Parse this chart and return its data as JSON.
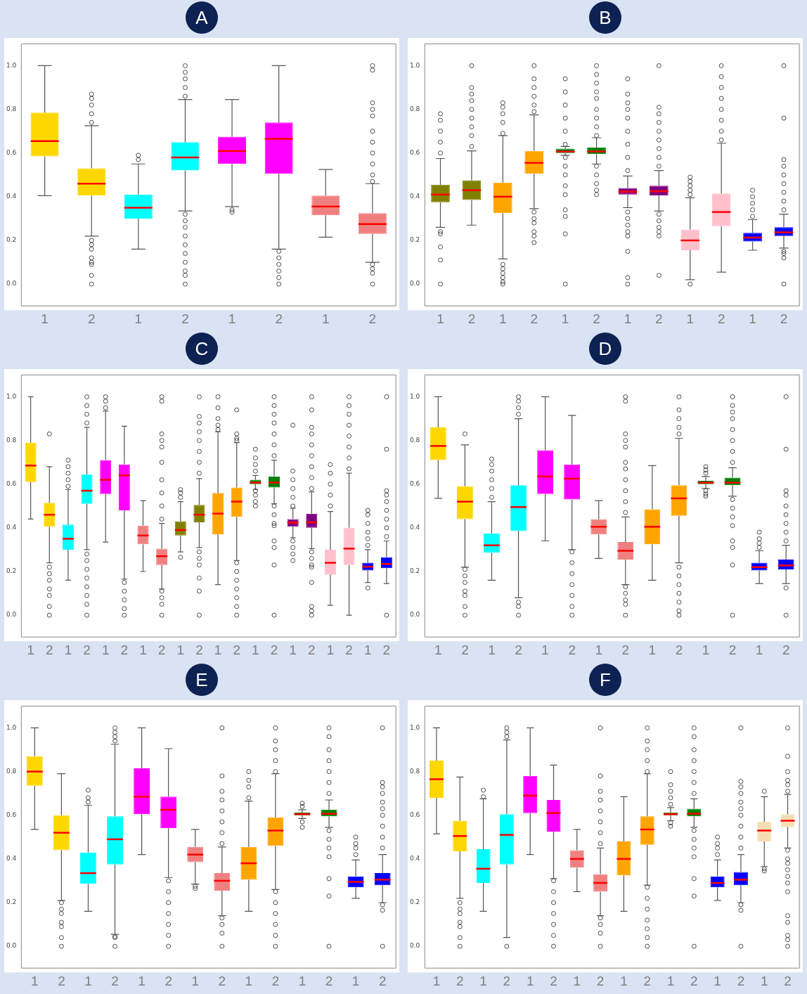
{
  "chart_data": [
    {
      "type": "box",
      "title": "A",
      "categories": [
        "1",
        "2",
        "1",
        "2",
        "1",
        "2",
        "1",
        "2"
      ],
      "colors": [
        "#ffd700",
        "#ffd700",
        "#00ffff",
        "#00ffff",
        "#ff00ff",
        "#ff00ff",
        "#f08080",
        "#f08080"
      ],
      "ylim": [
        -0.1,
        1.1
      ],
      "yticks": [
        {
          "value": 0,
          "label": "0.0"
        },
        {
          "value": 0.2,
          "label": "0.2"
        },
        {
          "value": 0.4,
          "label": "0.4"
        },
        {
          "value": 0.6,
          "label": "0.6"
        },
        {
          "value": 0.8,
          "label": "0.8"
        },
        {
          "value": 1,
          "label": "1.0"
        }
      ],
      "boxes": [
        {
          "low": 0.405,
          "q1": 0.585,
          "median": 0.655,
          "q3": 0.785,
          "high": 1.0
        },
        {
          "low": 0.22,
          "q1": 0.405,
          "median": 0.46,
          "q3": 0.53,
          "high": 0.725,
          "outliers": [
            0.74,
            0.78,
            0.82,
            0.85,
            0.87,
            0.2,
            0.18,
            0.16,
            0.12,
            0.1,
            0.09,
            0.04,
            0.0
          ]
        },
        {
          "low": 0.16,
          "q1": 0.3,
          "median": 0.35,
          "q3": 0.41,
          "high": 0.55,
          "outliers": [
            0.57,
            0.59
          ]
        },
        {
          "low": 0.335,
          "q1": 0.52,
          "median": 0.58,
          "q3": 0.65,
          "high": 0.845,
          "outliers": [
            0.86,
            0.9,
            0.94,
            0.97,
            1.0,
            0.32,
            0.29,
            0.26,
            0.22,
            0.18,
            0.14,
            0.1,
            0.06,
            0.04,
            0.0
          ]
        },
        {
          "low": 0.355,
          "q1": 0.55,
          "median": 0.61,
          "q3": 0.675,
          "high": 0.845,
          "outliers": [
            0.34,
            0.33
          ]
        },
        {
          "low": 0.16,
          "q1": 0.505,
          "median": 0.665,
          "q3": 0.74,
          "high": 1.0,
          "outliers": [
            0.15,
            0.12,
            0.09,
            0.06,
            0.03,
            0.0
          ]
        },
        {
          "low": 0.215,
          "q1": 0.315,
          "median": 0.355,
          "q3": 0.405,
          "high": 0.525
        },
        {
          "low": 0.1,
          "q1": 0.23,
          "median": 0.275,
          "q3": 0.325,
          "high": 0.46,
          "outliers": [
            0.47,
            0.5,
            0.55,
            0.6,
            0.65,
            0.7,
            0.77,
            0.8,
            0.83,
            0.98,
            1.0,
            0.09,
            0.07,
            0.05,
            0.0
          ]
        }
      ]
    },
    {
      "type": "box",
      "title": "B",
      "categories": [
        "1",
        "2",
        "1",
        "2",
        "1",
        "2",
        "1",
        "2",
        "1",
        "2",
        "1",
        "2"
      ],
      "colors": [
        "#808000",
        "#808000",
        "#ffa500",
        "#ffa500",
        "#008000",
        "#008000",
        "#800080",
        "#800080",
        "#ffc0cb",
        "#ffc0cb",
        "#0000ff",
        "#0000ff"
      ],
      "ylim": [
        -0.1,
        1.1
      ],
      "yticks": [
        {
          "value": 0,
          "label": "0.0"
        },
        {
          "value": 0.2,
          "label": "0.2"
        },
        {
          "value": 0.4,
          "label": "0.4"
        },
        {
          "value": 0.6,
          "label": "0.6"
        },
        {
          "value": 0.8,
          "label": "0.8"
        },
        {
          "value": 1,
          "label": "1.0"
        }
      ],
      "boxes": [
        {
          "low": 0.26,
          "q1": 0.375,
          "median": 0.41,
          "q3": 0.455,
          "high": 0.575,
          "outliers": [
            0.6,
            0.65,
            0.7,
            0.75,
            0.78,
            0.24,
            0.23,
            0.17,
            0.11,
            0.0
          ]
        },
        {
          "low": 0.27,
          "q1": 0.385,
          "median": 0.43,
          "q3": 0.475,
          "high": 0.61,
          "outliers": [
            0.63,
            0.68,
            0.72,
            0.76,
            0.8,
            0.84,
            0.87,
            0.9,
            1.0
          ]
        },
        {
          "low": 0.115,
          "q1": 0.325,
          "median": 0.4,
          "q3": 0.465,
          "high": 0.68,
          "outliers": [
            0.69,
            0.74,
            0.78,
            0.81,
            0.83,
            0.09,
            0.07,
            0.05,
            0.03,
            0.01,
            0.0
          ]
        },
        {
          "low": 0.345,
          "q1": 0.505,
          "median": 0.555,
          "q3": 0.61,
          "high": 0.775,
          "outliers": [
            0.79,
            0.82,
            0.86,
            0.9,
            0.94,
            1.0,
            0.33,
            0.3,
            0.28,
            0.24,
            0.22,
            0.19
          ]
        },
        {
          "low": 0.59,
          "q1": 0.6,
          "median": 0.607,
          "q3": 0.62,
          "high": 0.63,
          "outliers": [
            0.64,
            0.7,
            0.76,
            0.82,
            0.88,
            0.94,
            0.58,
            0.54,
            0.5,
            0.45,
            0.41,
            0.34,
            0.31,
            0.23,
            0.0
          ]
        },
        {
          "low": 0.55,
          "q1": 0.595,
          "median": 0.607,
          "q3": 0.625,
          "high": 0.67,
          "outliers": [
            0.68,
            0.72,
            0.76,
            0.8,
            0.85,
            0.88,
            0.92,
            0.96,
            1.0,
            0.54,
            0.5,
            0.46,
            0.43,
            0.41
          ]
        },
        {
          "low": 0.35,
          "q1": 0.41,
          "median": 0.423,
          "q3": 0.44,
          "high": 0.495,
          "outliers": [
            0.52,
            0.58,
            0.64,
            0.7,
            0.76,
            0.8,
            0.83,
            0.87,
            0.94,
            0.33,
            0.3,
            0.27,
            0.24,
            0.22,
            0.15,
            0.03,
            0.0
          ]
        },
        {
          "low": 0.335,
          "q1": 0.405,
          "median": 0.425,
          "q3": 0.45,
          "high": 0.52,
          "outliers": [
            0.54,
            0.58,
            0.62,
            0.66,
            0.7,
            0.74,
            0.78,
            0.81,
            1.0,
            0.32,
            0.29,
            0.26,
            0.24,
            0.22,
            0.04
          ]
        },
        {
          "low": 0.02,
          "q1": 0.155,
          "median": 0.2,
          "q3": 0.25,
          "high": 0.395,
          "outliers": [
            0.41,
            0.43,
            0.45,
            0.47,
            0.49,
            0.0
          ]
        },
        {
          "low": 0.055,
          "q1": 0.265,
          "median": 0.33,
          "q3": 0.415,
          "high": 0.645,
          "outliers": [
            0.66,
            0.7,
            0.75,
            0.8,
            0.85,
            0.9,
            0.95,
            1.0
          ]
        },
        {
          "low": 0.155,
          "q1": 0.195,
          "median": 0.213,
          "q3": 0.235,
          "high": 0.295,
          "outliers": [
            0.31,
            0.34,
            0.37,
            0.4,
            0.43
          ]
        },
        {
          "low": 0.165,
          "q1": 0.22,
          "median": 0.237,
          "q3": 0.26,
          "high": 0.32,
          "outliers": [
            0.34,
            0.38,
            0.42,
            0.46,
            0.5,
            0.54,
            0.57,
            0.76,
            1.0,
            0.15,
            0.14,
            0.12,
            0.0
          ]
        }
      ]
    },
    {
      "type": "box",
      "title": "C",
      "categories": [
        "1",
        "2",
        "1",
        "2",
        "1",
        "2",
        "1",
        "2",
        "1",
        "2",
        "1",
        "2",
        "1",
        "2",
        "1",
        "2",
        "1",
        "2",
        "1",
        "2"
      ],
      "colors": [
        "#ffd700",
        "#ffd700",
        "#00ffff",
        "#00ffff",
        "#ff00ff",
        "#ff00ff",
        "#f08080",
        "#f08080",
        "#808000",
        "#808000",
        "#ffa500",
        "#ffa500",
        "#008000",
        "#008000",
        "#800080",
        "#800080",
        "#ffc0cb",
        "#ffc0cb",
        "#0000ff",
        "#0000ff"
      ],
      "ylim": [
        -0.1,
        1.1
      ],
      "yticks": [
        {
          "value": 0,
          "label": "0.0"
        },
        {
          "value": 0.2,
          "label": "0.2"
        },
        {
          "value": 0.4,
          "label": "0.4"
        },
        {
          "value": 0.6,
          "label": "0.6"
        },
        {
          "value": 0.8,
          "label": "0.8"
        },
        {
          "value": 1,
          "label": "1.0"
        }
      ],
      "boxes": [
        {
          "low": 0.44,
          "q1": 0.61,
          "median": 0.685,
          "q3": 0.79,
          "high": 1.0
        },
        {
          "low": 0.24,
          "q1": 0.405,
          "median": 0.46,
          "q3": 0.515,
          "high": 0.68,
          "outliers": [
            0.83,
            0.22,
            0.19,
            0.16,
            0.12,
            0.09,
            0.04,
            0.0
          ]
        },
        {
          "low": 0.16,
          "q1": 0.3,
          "median": 0.35,
          "q3": 0.415,
          "high": 0.575,
          "outliers": [
            0.59,
            0.62,
            0.65,
            0.68,
            0.71
          ]
        },
        {
          "low": 0.3,
          "q1": 0.51,
          "median": 0.57,
          "q3": 0.645,
          "high": 0.86,
          "outliers": [
            0.88,
            0.92,
            0.96,
            1.0,
            0.28,
            0.25,
            0.21,
            0.17,
            0.13,
            0.09,
            0.05,
            0.0
          ]
        },
        {
          "low": 0.335,
          "q1": 0.555,
          "median": 0.62,
          "q3": 0.71,
          "high": 0.935,
          "outliers": [
            0.95,
            0.98,
            1.0
          ]
        },
        {
          "low": 0.165,
          "q1": 0.48,
          "median": 0.64,
          "q3": 0.69,
          "high": 0.865,
          "outliers": [
            0.15,
            0.11,
            0.07,
            0.03,
            0.0
          ]
        },
        {
          "low": 0.2,
          "q1": 0.325,
          "median": 0.365,
          "q3": 0.41,
          "high": 0.525
        },
        {
          "low": 0.12,
          "q1": 0.23,
          "median": 0.27,
          "q3": 0.305,
          "high": 0.42,
          "outliers": [
            0.44,
            0.5,
            0.56,
            0.62,
            0.7,
            0.77,
            0.8,
            0.83,
            0.98,
            1.0,
            0.11,
            0.08,
            0.05,
            0.0
          ]
        },
        {
          "low": 0.29,
          "q1": 0.365,
          "median": 0.39,
          "q3": 0.43,
          "high": 0.52,
          "outliers": [
            0.54,
            0.56,
            0.575,
            0.265
          ]
        },
        {
          "low": 0.31,
          "q1": 0.425,
          "median": 0.46,
          "q3": 0.505,
          "high": 0.625,
          "outliers": [
            0.65,
            0.7,
            0.75,
            0.8,
            0.84,
            0.88,
            0.91,
            1.0,
            0.29,
            0.26,
            0.23,
            0.17,
            0.11,
            0.0
          ]
        },
        {
          "low": 0.14,
          "q1": 0.37,
          "median": 0.465,
          "q3": 0.56,
          "high": 0.84,
          "outliers": [
            0.85,
            0.87,
            0.9,
            0.95,
            1.0
          ]
        },
        {
          "low": 0.25,
          "q1": 0.45,
          "median": 0.52,
          "q3": 0.585,
          "high": 0.79,
          "outliers": [
            0.8,
            0.81,
            0.83,
            0.94,
            0.24,
            0.2,
            0.16,
            0.12,
            0.08,
            0.04,
            0.0
          ]
        },
        {
          "low": 0.575,
          "q1": 0.6,
          "median": 0.607,
          "q3": 0.62,
          "high": 0.64,
          "outliers": [
            0.66,
            0.69,
            0.72,
            0.76,
            0.57,
            0.55,
            0.52,
            0.5
          ]
        },
        {
          "low": 0.51,
          "q1": 0.585,
          "median": 0.607,
          "q3": 0.635,
          "high": 0.71,
          "outliers": [
            0.73,
            0.78,
            0.83,
            0.88,
            0.92,
            0.96,
            1.0,
            0.5,
            0.46,
            0.42,
            0.41,
            0.34,
            0.31,
            0.23,
            0.0
          ]
        },
        {
          "low": 0.355,
          "q1": 0.405,
          "median": 0.424,
          "q3": 0.44,
          "high": 0.49,
          "outliers": [
            0.5,
            0.54,
            0.58,
            0.62,
            0.66,
            0.87,
            0.34,
            0.31,
            0.28,
            0.25
          ]
        },
        {
          "low": 0.305,
          "q1": 0.4,
          "median": 0.425,
          "q3": 0.465,
          "high": 0.565,
          "outliers": [
            0.58,
            0.63,
            0.68,
            0.73,
            0.78,
            0.83,
            0.86,
            0.94,
            1.0,
            0.29,
            0.26,
            0.23,
            0.22,
            0.15,
            0.04,
            0.02,
            0.0
          ]
        },
        {
          "low": 0.045,
          "q1": 0.185,
          "median": 0.24,
          "q3": 0.3,
          "high": 0.475,
          "outliers": [
            0.5,
            0.55,
            0.6,
            0.65,
            0.69
          ]
        },
        {
          "low": 0.0,
          "q1": 0.23,
          "median": 0.305,
          "q3": 0.4,
          "high": 0.65,
          "outliers": [
            0.67,
            0.72,
            0.77,
            0.82,
            0.87,
            0.92,
            0.96,
            1.0
          ]
        },
        {
          "low": 0.15,
          "q1": 0.205,
          "median": 0.222,
          "q3": 0.24,
          "high": 0.3,
          "outliers": [
            0.32,
            0.35,
            0.38,
            0.42,
            0.46,
            0.48,
            0.125
          ]
        },
        {
          "low": 0.145,
          "q1": 0.215,
          "median": 0.235,
          "q3": 0.265,
          "high": 0.34,
          "outliers": [
            0.36,
            0.4,
            0.44,
            0.48,
            0.52,
            0.55,
            0.57,
            0.76,
            1.0,
            0.0
          ]
        }
      ]
    },
    {
      "type": "box",
      "title": "D",
      "categories": [
        "1",
        "2",
        "1",
        "2",
        "1",
        "2",
        "1",
        "2",
        "1",
        "2",
        "1",
        "2",
        "1",
        "2"
      ],
      "colors": [
        "#ffd700",
        "#ffd700",
        "#00ffff",
        "#00ffff",
        "#ff00ff",
        "#ff00ff",
        "#f08080",
        "#f08080",
        "#ffa500",
        "#ffa500",
        "#008000",
        "#008000",
        "#0000ff",
        "#0000ff"
      ],
      "ylim": [
        -0.1,
        1.1
      ],
      "yticks": [
        {
          "value": 0,
          "label": "0.0"
        },
        {
          "value": 0.2,
          "label": "0.2"
        },
        {
          "value": 0.4,
          "label": "0.4"
        },
        {
          "value": 0.6,
          "label": "0.6"
        },
        {
          "value": 0.8,
          "label": "0.8"
        },
        {
          "value": 1,
          "label": "1.0"
        }
      ],
      "boxes": [
        {
          "low": 0.535,
          "q1": 0.71,
          "median": 0.775,
          "q3": 0.86,
          "high": 1.0
        },
        {
          "low": 0.22,
          "q1": 0.44,
          "median": 0.52,
          "q3": 0.59,
          "high": 0.78,
          "outliers": [
            0.83,
            0.21,
            0.18,
            0.15,
            0.11,
            0.09,
            0.04,
            0.0
          ]
        },
        {
          "low": 0.16,
          "q1": 0.285,
          "median": 0.32,
          "q3": 0.375,
          "high": 0.52,
          "outliers": [
            0.54,
            0.58,
            0.62,
            0.66,
            0.69,
            0.715
          ]
        },
        {
          "low": 0.08,
          "q1": 0.385,
          "median": 0.495,
          "q3": 0.595,
          "high": 0.9,
          "outliers": [
            0.92,
            0.95,
            0.98,
            1.0,
            0.06,
            0.04,
            0.0
          ]
        },
        {
          "low": 0.34,
          "q1": 0.555,
          "median": 0.635,
          "q3": 0.755,
          "high": 1.0
        },
        {
          "low": 0.3,
          "q1": 0.53,
          "median": 0.625,
          "q3": 0.69,
          "high": 0.915,
          "outliers": [
            0.29,
            0.24,
            0.19,
            0.14,
            0.09,
            0.04,
            0.0
          ]
        },
        {
          "low": 0.26,
          "q1": 0.37,
          "median": 0.405,
          "q3": 0.44,
          "high": 0.525
        },
        {
          "low": 0.14,
          "q1": 0.255,
          "median": 0.295,
          "q3": 0.335,
          "high": 0.45,
          "outliers": [
            0.47,
            0.52,
            0.57,
            0.62,
            0.67,
            0.7,
            0.77,
            0.8,
            0.83,
            0.98,
            1.0,
            0.13,
            0.1,
            0.07,
            0.05,
            0.0
          ]
        },
        {
          "low": 0.16,
          "q1": 0.325,
          "median": 0.405,
          "q3": 0.485,
          "high": 0.685
        },
        {
          "low": 0.24,
          "q1": 0.455,
          "median": 0.535,
          "q3": 0.595,
          "high": 0.81,
          "outliers": [
            0.83,
            0.86,
            0.9,
            0.94,
            1.0,
            0.22,
            0.18,
            0.14,
            0.1,
            0.06,
            0.02,
            0.0
          ]
        },
        {
          "low": 0.58,
          "q1": 0.6,
          "median": 0.607,
          "q3": 0.615,
          "high": 0.635,
          "outliers": [
            0.65,
            0.665,
            0.68,
            0.57,
            0.555,
            0.545
          ]
        },
        {
          "low": 0.545,
          "q1": 0.595,
          "median": 0.607,
          "q3": 0.63,
          "high": 0.675,
          "outliers": [
            0.7,
            0.75,
            0.8,
            0.85,
            0.9,
            0.93,
            0.96,
            1.0,
            0.53,
            0.49,
            0.45,
            0.41,
            0.34,
            0.31,
            0.23,
            0.0
          ]
        },
        {
          "low": 0.145,
          "q1": 0.205,
          "median": 0.22,
          "q3": 0.24,
          "high": 0.295,
          "outliers": [
            0.31,
            0.33,
            0.35,
            0.38
          ]
        },
        {
          "low": 0.145,
          "q1": 0.21,
          "median": 0.228,
          "q3": 0.255,
          "high": 0.32,
          "outliers": [
            0.34,
            0.38,
            0.42,
            0.46,
            0.5,
            0.55,
            0.57,
            0.76,
            1.0,
            0.125,
            0.0
          ]
        }
      ]
    },
    {
      "type": "box",
      "title": "E",
      "categories": [
        "1",
        "2",
        "1",
        "2",
        "1",
        "2",
        "1",
        "2",
        "1",
        "2",
        "1",
        "2",
        "1",
        "2"
      ],
      "colors": [
        "#ffd700",
        "#ffd700",
        "#00ffff",
        "#00ffff",
        "#ff00ff",
        "#ff00ff",
        "#f08080",
        "#f08080",
        "#ffa500",
        "#ffa500",
        "#008000",
        "#008000",
        "#0000ff",
        "#0000ff"
      ],
      "ylim": [
        -0.1,
        1.1
      ],
      "yticks": [
        {
          "value": 0,
          "label": "0.0"
        },
        {
          "value": 0.2,
          "label": "0.2"
        },
        {
          "value": 0.4,
          "label": "0.4"
        },
        {
          "value": 0.6,
          "label": "0.6"
        },
        {
          "value": 0.8,
          "label": "0.8"
        },
        {
          "value": 1,
          "label": "1.0"
        }
      ],
      "boxes": [
        {
          "low": 0.535,
          "q1": 0.735,
          "median": 0.8,
          "q3": 0.87,
          "high": 1.0
        },
        {
          "low": 0.21,
          "q1": 0.44,
          "median": 0.52,
          "q3": 0.6,
          "high": 0.79,
          "outliers": [
            0.2,
            0.17,
            0.15,
            0.11,
            0.09,
            0.04,
            0.0
          ]
        },
        {
          "low": 0.16,
          "q1": 0.285,
          "median": 0.335,
          "q3": 0.43,
          "high": 0.645,
          "outliers": [
            0.66,
            0.68,
            0.715
          ]
        },
        {
          "low": 0.055,
          "q1": 0.375,
          "median": 0.49,
          "q3": 0.595,
          "high": 0.925,
          "outliers": [
            0.94,
            0.96,
            0.98,
            1.0,
            0.045,
            0.04,
            0.0
          ]
        },
        {
          "low": 0.42,
          "q1": 0.605,
          "median": 0.685,
          "q3": 0.815,
          "high": 1.0
        },
        {
          "low": 0.315,
          "q1": 0.54,
          "median": 0.625,
          "q3": 0.685,
          "high": 0.905,
          "outliers": [
            0.3,
            0.25,
            0.2,
            0.15,
            0.1,
            0.05,
            0.0
          ]
        },
        {
          "low": 0.285,
          "q1": 0.385,
          "median": 0.42,
          "q3": 0.455,
          "high": 0.535,
          "outliers": [
            0.275,
            0.265
          ]
        },
        {
          "low": 0.14,
          "q1": 0.255,
          "median": 0.3,
          "q3": 0.335,
          "high": 0.455,
          "outliers": [
            0.47,
            0.52,
            0.57,
            0.62,
            0.67,
            0.71,
            0.78,
            1.0,
            0.13,
            0.1,
            0.06,
            0.0
          ]
        },
        {
          "low": 0.16,
          "q1": 0.305,
          "median": 0.38,
          "q3": 0.455,
          "high": 0.665,
          "outliers": [
            0.68,
            0.73,
            0.76,
            0.8
          ]
        },
        {
          "low": 0.26,
          "q1": 0.46,
          "median": 0.53,
          "q3": 0.59,
          "high": 0.79,
          "outliers": [
            0.8,
            0.85,
            0.9,
            0.94,
            1.0,
            0.25,
            0.2,
            0.15,
            0.1,
            0.05,
            0.0
          ]
        },
        {
          "low": 0.585,
          "q1": 0.6,
          "median": 0.605,
          "q3": 0.612,
          "high": 0.625,
          "outliers": [
            0.64,
            0.655,
            0.57,
            0.545
          ]
        },
        {
          "low": 0.545,
          "q1": 0.595,
          "median": 0.607,
          "q3": 0.625,
          "high": 0.67,
          "outliers": [
            0.7,
            0.75,
            0.8,
            0.85,
            0.9,
            0.96,
            1.0,
            0.53,
            0.49,
            0.45,
            0.41,
            0.31,
            0.23,
            0.0
          ]
        },
        {
          "low": 0.22,
          "q1": 0.27,
          "median": 0.295,
          "q3": 0.32,
          "high": 0.395,
          "outliers": [
            0.42,
            0.45,
            0.47,
            0.5
          ]
        },
        {
          "low": 0.2,
          "q1": 0.28,
          "median": 0.305,
          "q3": 0.335,
          "high": 0.42,
          "outliers": [
            0.45,
            0.5,
            0.55,
            0.6,
            0.63,
            0.66,
            0.7,
            0.73,
            0.75,
            1.0,
            0.19,
            0.165,
            0.0
          ]
        }
      ]
    },
    {
      "type": "box",
      "title": "F",
      "categories": [
        "1",
        "2",
        "1",
        "2",
        "1",
        "2",
        "1",
        "2",
        "1",
        "2",
        "1",
        "2",
        "1",
        "2",
        "1",
        "2"
      ],
      "colors": [
        "#ffd700",
        "#ffd700",
        "#00ffff",
        "#00ffff",
        "#ff00ff",
        "#ff00ff",
        "#f08080",
        "#f08080",
        "#ffa500",
        "#ffa500",
        "#008000",
        "#008000",
        "#0000ff",
        "#0000ff",
        "#f5deb3",
        "#f5deb3"
      ],
      "ylim": [
        -0.1,
        1.1
      ],
      "yticks": [
        {
          "value": 0,
          "label": "0.0"
        },
        {
          "value": 0.2,
          "label": "0.2"
        },
        {
          "value": 0.4,
          "label": "0.4"
        },
        {
          "value": 0.6,
          "label": "0.6"
        },
        {
          "value": 0.8,
          "label": "0.8"
        },
        {
          "value": 1,
          "label": "1.0"
        }
      ],
      "boxes": [
        {
          "low": 0.515,
          "q1": 0.68,
          "median": 0.765,
          "q3": 0.85,
          "high": 1.0
        },
        {
          "low": 0.22,
          "q1": 0.435,
          "median": 0.505,
          "q3": 0.575,
          "high": 0.775,
          "outliers": [
            0.2,
            0.17,
            0.15,
            0.11,
            0.09,
            0.04,
            0.0
          ]
        },
        {
          "low": 0.16,
          "q1": 0.29,
          "median": 0.355,
          "q3": 0.445,
          "high": 0.675,
          "outliers": [
            0.685,
            0.715
          ]
        },
        {
          "low": 0.04,
          "q1": 0.375,
          "median": 0.51,
          "q3": 0.605,
          "high": 0.945,
          "outliers": [
            0.96,
            0.98,
            1.0,
            0.0
          ]
        },
        {
          "low": 0.42,
          "q1": 0.61,
          "median": 0.69,
          "q3": 0.78,
          "high": 1.0
        },
        {
          "low": 0.31,
          "q1": 0.525,
          "median": 0.61,
          "q3": 0.67,
          "high": 0.83,
          "outliers": [
            0.3,
            0.25,
            0.2,
            0.15,
            0.1,
            0.05,
            0.0
          ]
        },
        {
          "low": 0.25,
          "q1": 0.36,
          "median": 0.4,
          "q3": 0.44,
          "high": 0.535
        },
        {
          "low": 0.14,
          "q1": 0.25,
          "median": 0.29,
          "q3": 0.33,
          "high": 0.45,
          "outliers": [
            0.47,
            0.52,
            0.57,
            0.62,
            0.67,
            0.71,
            0.78,
            1.0,
            0.13,
            0.1,
            0.06,
            0.0
          ]
        },
        {
          "low": 0.16,
          "q1": 0.325,
          "median": 0.4,
          "q3": 0.48,
          "high": 0.685
        },
        {
          "low": 0.28,
          "q1": 0.465,
          "median": 0.535,
          "q3": 0.595,
          "high": 0.79,
          "outliers": [
            0.8,
            0.85,
            0.9,
            0.94,
            1.0,
            0.27,
            0.22,
            0.17,
            0.12,
            0.08,
            0.04,
            0.0
          ]
        },
        {
          "low": 0.575,
          "q1": 0.6,
          "median": 0.605,
          "q3": 0.613,
          "high": 0.635,
          "outliers": [
            0.65,
            0.68,
            0.71,
            0.74,
            0.8,
            0.565,
            0.55
          ]
        },
        {
          "low": 0.545,
          "q1": 0.595,
          "median": 0.607,
          "q3": 0.63,
          "high": 0.675,
          "outliers": [
            0.7,
            0.75,
            0.8,
            0.85,
            0.9,
            0.96,
            1.0,
            0.53,
            0.49,
            0.45,
            0.41,
            0.31,
            0.23,
            0.0
          ]
        },
        {
          "low": 0.21,
          "q1": 0.27,
          "median": 0.29,
          "q3": 0.32,
          "high": 0.395,
          "outliers": [
            0.42,
            0.45,
            0.47,
            0.5
          ]
        },
        {
          "low": 0.2,
          "q1": 0.28,
          "median": 0.305,
          "q3": 0.34,
          "high": 0.42,
          "outliers": [
            0.45,
            0.5,
            0.55,
            0.6,
            0.63,
            0.66,
            0.7,
            0.73,
            0.755,
            1.0,
            0.19,
            0.165,
            0.0
          ]
        },
        {
          "low": 0.365,
          "q1": 0.48,
          "median": 0.53,
          "q3": 0.57,
          "high": 0.685,
          "outliers": [
            0.71,
            0.355,
            0.345
          ]
        },
        {
          "low": 0.45,
          "q1": 0.545,
          "median": 0.575,
          "q3": 0.605,
          "high": 0.695,
          "outliers": [
            0.71,
            0.74,
            0.76,
            0.8,
            0.87,
            1.0,
            0.44,
            0.4,
            0.38,
            0.35,
            0.32,
            0.29,
            0.25,
            0.14,
            0.11,
            0.05,
            0.03,
            0.0
          ]
        }
      ]
    }
  ]
}
